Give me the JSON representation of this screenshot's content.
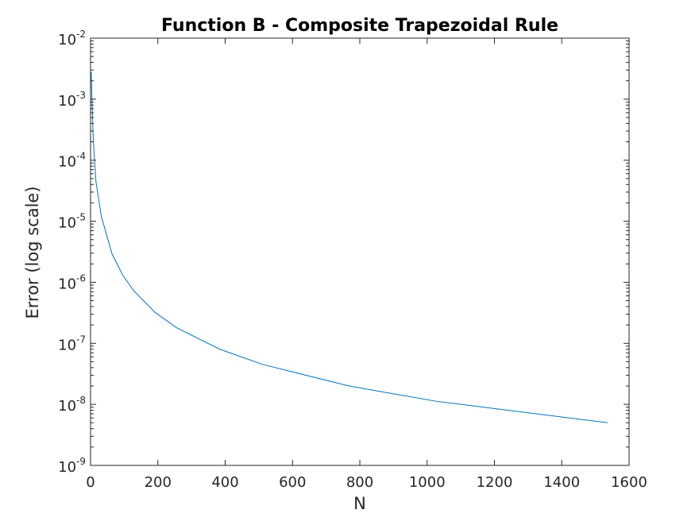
{
  "chart_data": {
    "type": "line",
    "title": "Function B - Composite Trapezoidal Rule",
    "xlabel": "N",
    "ylabel": "Error (log scale)",
    "xlim": [
      0,
      1600
    ],
    "ylim": [
      1e-09,
      0.01
    ],
    "yscale": "log",
    "grid": false,
    "x_ticks": [
      "0",
      "200",
      "400",
      "600",
      "800",
      "1000",
      "1200",
      "1400",
      "1600"
    ],
    "y_ticks": [
      {
        "base": "10",
        "exp": "-9"
      },
      {
        "base": "10",
        "exp": "-8"
      },
      {
        "base": "10",
        "exp": "-7"
      },
      {
        "base": "10",
        "exp": "-6"
      },
      {
        "base": "10",
        "exp": "-5"
      },
      {
        "base": "10",
        "exp": "-4"
      },
      {
        "base": "10",
        "exp": "-3"
      },
      {
        "base": "10",
        "exp": "-2"
      }
    ],
    "series": [
      {
        "color": "#0072BD",
        "x": [
          2,
          4,
          8,
          16,
          32,
          64,
          96,
          128,
          192,
          256,
          384,
          512,
          768,
          1024,
          1536
        ],
        "y": [
          0.0028,
          0.0011,
          0.00022,
          4.5e-05,
          1.2e-05,
          2.9e-06,
          1.3e-06,
          7.3e-07,
          3.2e-07,
          1.8e-07,
          8e-08,
          4.5e-08,
          2e-08,
          1.13e-08,
          5e-09
        ]
      }
    ]
  }
}
